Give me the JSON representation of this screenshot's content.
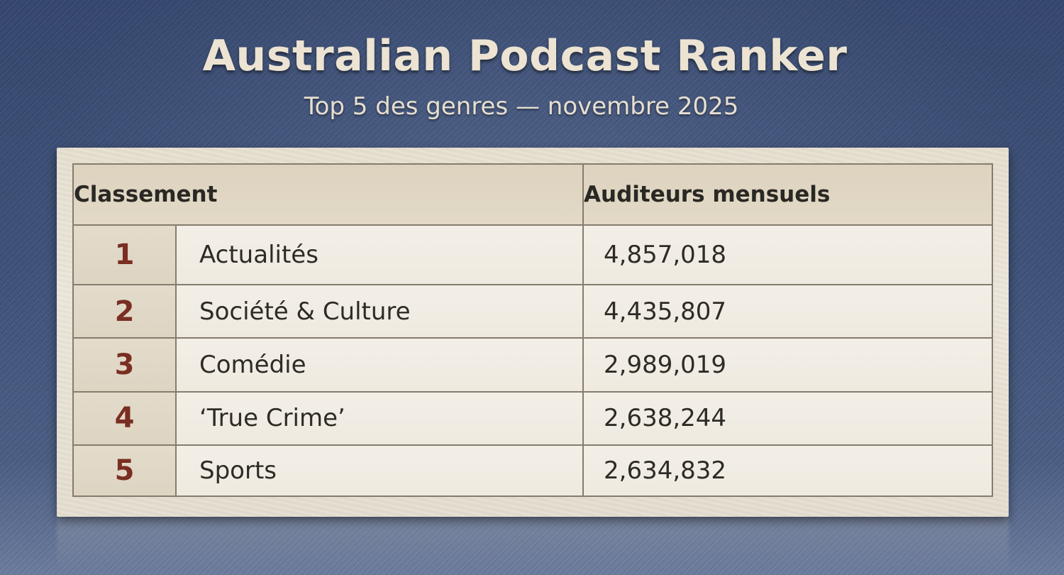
{
  "title": "Australian Podcast Ranker",
  "subtitle": "Top 5 des genres — novembre 2025",
  "table": {
    "headers": {
      "rank": "Classement",
      "listeners": "Auditeurs mensuels"
    },
    "rows": [
      {
        "rank": "1",
        "genre": "Actualités",
        "listeners": "4,857,018"
      },
      {
        "rank": "2",
        "genre": "Société & Culture",
        "listeners": "4,435,807"
      },
      {
        "rank": "3",
        "genre": "Comédie",
        "listeners": "2,989,019"
      },
      {
        "rank": "4",
        "genre": "‘True Crime’",
        "listeners": "2,638,244"
      },
      {
        "rank": "5",
        "genre": "Sports",
        "listeners": "2,634,832"
      }
    ]
  },
  "chart_data": {
    "type": "table",
    "title": "Australian Podcast Ranker",
    "subtitle": "Top 5 des genres — novembre 2025",
    "columns": [
      "Classement",
      "Auditeurs mensuels"
    ],
    "categories": [
      "Actualités",
      "Société & Culture",
      "Comédie",
      "‘True Crime’",
      "Sports"
    ],
    "ranks": [
      1,
      2,
      3,
      4,
      5
    ],
    "values": [
      4857018,
      4435807,
      2989019,
      2638244,
      2634832
    ]
  },
  "colors": {
    "background": "#3d5078",
    "card": "#ece6da",
    "rank_text": "#7a2e22",
    "title_text": "#ece3d2"
  }
}
